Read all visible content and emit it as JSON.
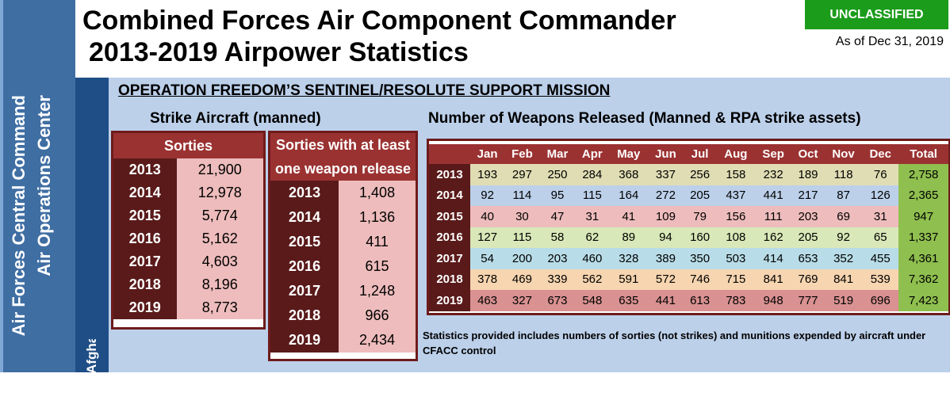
{
  "sidebar": {
    "line1": "Air Forces Central Command",
    "line2": "Air Operations Center",
    "inner_label": "Afghanistan"
  },
  "header": {
    "title_line1": "Combined Forces Air Component Commander",
    "title_line2": "2013-2019 Airpower Statistics",
    "classification": "UNCLASSIFIED",
    "as_of": "As of Dec 31, 2019"
  },
  "operation_title": "OPERATION FREEDOM’S SENTINEL/RESOLUTE SUPPORT MISSION",
  "strike_heading": "Strike Aircraft (manned)",
  "weapons_heading": "Number of Weapons Released (Manned & RPA strike assets)",
  "sorties": {
    "header": "Sorties",
    "rows": [
      {
        "year": "2013",
        "value": "21,900"
      },
      {
        "year": "2014",
        "value": "12,978"
      },
      {
        "year": "2015",
        "value": "5,774"
      },
      {
        "year": "2016",
        "value": "5,162"
      },
      {
        "year": "2017",
        "value": "4,603"
      },
      {
        "year": "2018",
        "value": "8,196"
      },
      {
        "year": "2019",
        "value": "8,773"
      }
    ]
  },
  "weapon_sorties": {
    "header_line1": "Sorties with at least",
    "header_line2": "one weapon release",
    "rows": [
      {
        "year": "2013",
        "value": "1,408"
      },
      {
        "year": "2014",
        "value": "1,136"
      },
      {
        "year": "2015",
        "value": "411"
      },
      {
        "year": "2016",
        "value": "615"
      },
      {
        "year": "2017",
        "value": "1,248"
      },
      {
        "year": "2018",
        "value": "966"
      },
      {
        "year": "2019",
        "value": "2,434"
      }
    ]
  },
  "weapons": {
    "columns": [
      "Jan",
      "Feb",
      "Mar",
      "Apr",
      "May",
      "Jun",
      "Jul",
      "Aug",
      "Sep",
      "Oct",
      "Nov",
      "Dec",
      "Total"
    ],
    "rows": [
      {
        "year": "2013",
        "color": "#e0ddb4",
        "values": [
          "193",
          "297",
          "250",
          "284",
          "368",
          "337",
          "256",
          "158",
          "232",
          "189",
          "118",
          "76"
        ],
        "total": "2,758"
      },
      {
        "year": "2014",
        "color": "#bcd0ea",
        "values": [
          "92",
          "114",
          "95",
          "115",
          "164",
          "272",
          "205",
          "437",
          "441",
          "217",
          "87",
          "126"
        ],
        "total": "2,365"
      },
      {
        "year": "2015",
        "color": "#eebcbc",
        "values": [
          "40",
          "30",
          "47",
          "31",
          "41",
          "109",
          "79",
          "156",
          "111",
          "203",
          "69",
          "31"
        ],
        "total": "947"
      },
      {
        "year": "2016",
        "color": "#d9e8b8",
        "values": [
          "127",
          "115",
          "58",
          "62",
          "89",
          "94",
          "160",
          "108",
          "162",
          "205",
          "92",
          "65"
        ],
        "total": "1,337"
      },
      {
        "year": "2017",
        "color": "#b9dde8",
        "values": [
          "54",
          "200",
          "203",
          "460",
          "328",
          "389",
          "350",
          "503",
          "414",
          "653",
          "352",
          "455"
        ],
        "total": "4,361"
      },
      {
        "year": "2018",
        "color": "#f6d5b0",
        "values": [
          "378",
          "469",
          "339",
          "562",
          "591",
          "572",
          "746",
          "715",
          "841",
          "769",
          "841",
          "539"
        ],
        "total": "7,362"
      },
      {
        "year": "2019",
        "color": "#d99191",
        "values": [
          "463",
          "327",
          "673",
          "548",
          "635",
          "441",
          "613",
          "783",
          "948",
          "777",
          "519",
          "696"
        ],
        "total": "7,423"
      }
    ]
  },
  "note": "Statistics provided includes numbers of sorties (not strikes) and munitions expended by aircraft under CFACC control"
}
